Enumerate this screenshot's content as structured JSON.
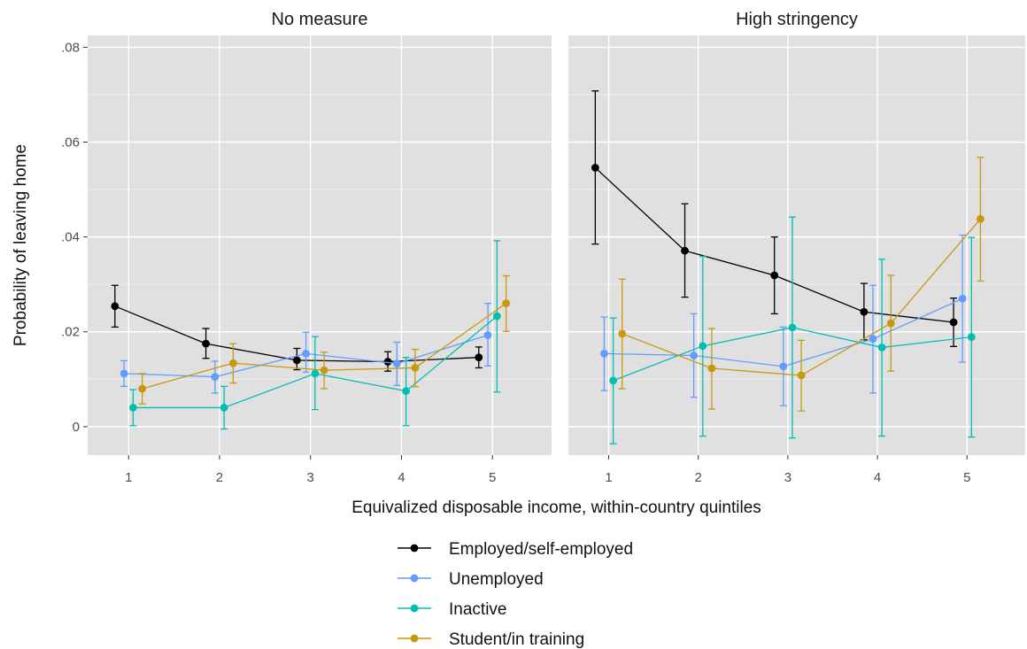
{
  "chart_data": {
    "type": "line",
    "ylabel": "Probability of leaving home",
    "xlabel": "Equivalized disposable income, within-country quintiles",
    "categories": [
      "1",
      "2",
      "3",
      "4",
      "5"
    ],
    "x": [
      1,
      2,
      3,
      4,
      5
    ],
    "ylim": [
      -0.006,
      0.0825
    ],
    "yticks": [
      0,
      0.02,
      0.04,
      0.06,
      0.08
    ],
    "yticklabels": [
      "0",
      ".02",
      ".04",
      ".06",
      ".08"
    ],
    "grid": true,
    "legend_placement": "bottom",
    "panels": [
      {
        "title": "No measure",
        "series": [
          {
            "name": "Employed/self-employed",
            "color": "#000000",
            "values": [
              0.0254,
              0.0175,
              0.014,
              0.0137,
              0.0146
            ],
            "lower": [
              0.021,
              0.0144,
              0.012,
              0.0117,
              0.0124
            ],
            "upper": [
              0.0298,
              0.0207,
              0.0165,
              0.0158,
              0.0168
            ]
          },
          {
            "name": "Unemployed",
            "color": "#619cff",
            "values": [
              0.0112,
              0.0105,
              0.0154,
              0.0133,
              0.0193
            ],
            "lower": [
              0.0085,
              0.0071,
              0.0115,
              0.0087,
              0.0128
            ],
            "upper": [
              0.0139,
              0.0138,
              0.0199,
              0.0178,
              0.026
            ]
          },
          {
            "name": "Inactive",
            "color": "#00bfb0",
            "values": [
              0.004,
              0.004,
              0.0112,
              0.0075,
              0.0233
            ],
            "lower": [
              0.0002,
              -0.0005,
              0.0036,
              0.0002,
              0.0073
            ],
            "upper": [
              0.0078,
              0.0085,
              0.019,
              0.0146,
              0.0392
            ]
          },
          {
            "name": "Student/in training",
            "color": "#c8990f",
            "values": [
              0.008,
              0.0134,
              0.0119,
              0.0124,
              0.026
            ],
            "lower": [
              0.0048,
              0.0092,
              0.008,
              0.0084,
              0.0201
            ],
            "upper": [
              0.0112,
              0.0175,
              0.0157,
              0.0163,
              0.0318
            ]
          }
        ]
      },
      {
        "title": "High stringency",
        "series": [
          {
            "name": "Employed/self-employed",
            "color": "#000000",
            "values": [
              0.0546,
              0.0371,
              0.0319,
              0.0242,
              0.022
            ],
            "lower": [
              0.0385,
              0.0273,
              0.0238,
              0.0183,
              0.0169
            ],
            "upper": [
              0.0708,
              0.047,
              0.04,
              0.0302,
              0.0271
            ]
          },
          {
            "name": "Unemployed",
            "color": "#619cff",
            "values": [
              0.0154,
              0.015,
              0.0127,
              0.0185,
              0.027
            ],
            "lower": [
              0.0076,
              0.0062,
              0.0044,
              0.0071,
              0.0136
            ],
            "upper": [
              0.0231,
              0.0238,
              0.021,
              0.0298,
              0.0404
            ]
          },
          {
            "name": "Inactive",
            "color": "#00bfb0",
            "values": [
              0.0097,
              0.017,
              0.0209,
              0.0167,
              0.0189
            ],
            "lower": [
              -0.0036,
              -0.002,
              -0.0024,
              -0.002,
              -0.0022
            ],
            "upper": [
              0.0229,
              0.0359,
              0.0442,
              0.0353,
              0.0399
            ]
          },
          {
            "name": "Student/in training",
            "color": "#c8990f",
            "values": [
              0.0196,
              0.0123,
              0.0108,
              0.0218,
              0.0438
            ],
            "lower": [
              0.008,
              0.0037,
              0.0033,
              0.0117,
              0.0307
            ],
            "upper": [
              0.0311,
              0.0207,
              0.0182,
              0.0319,
              0.0568
            ]
          }
        ]
      }
    ]
  }
}
